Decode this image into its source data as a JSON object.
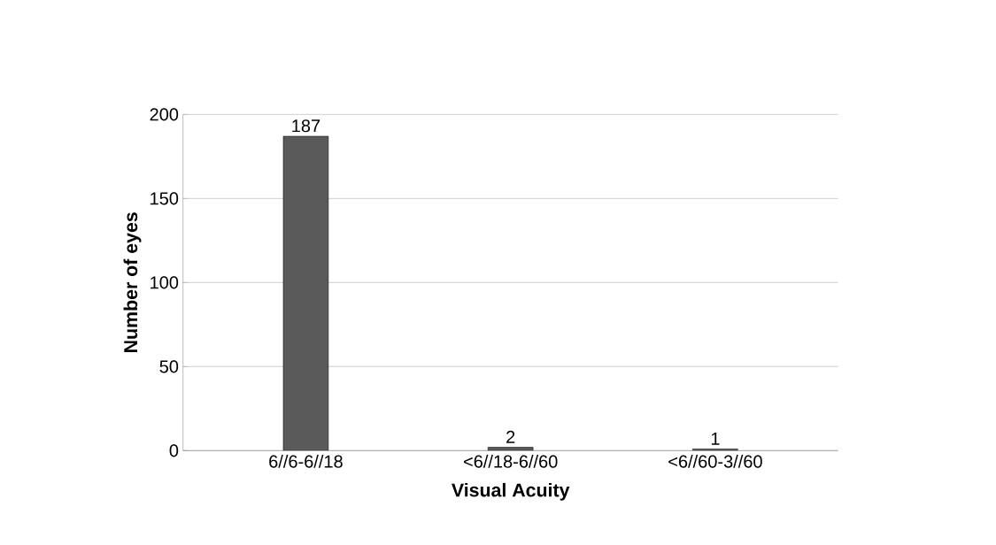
{
  "chart_data": {
    "type": "bar",
    "xlabel": "Visual Acuity",
    "ylabel": "Number of eyes",
    "categories": [
      "6//6-6//18",
      "<6//18-6//60",
      "<6//60-3//60"
    ],
    "values": [
      187,
      2,
      1
    ],
    "color": "#5a5a5a",
    "ylim": [
      0,
      200
    ],
    "yticks": [
      0,
      50,
      100,
      150,
      200
    ],
    "grid": "y",
    "data_labels": true
  }
}
